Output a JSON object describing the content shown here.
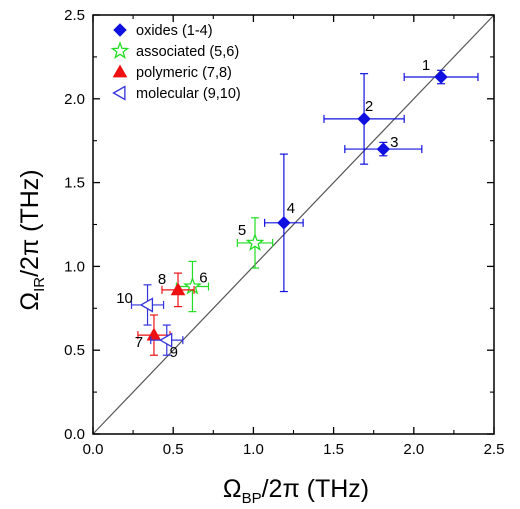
{
  "chart_data": {
    "type": "scatter",
    "xlabel": {
      "base": "Ω",
      "sub": "BP",
      "rest": "/2π (THz)"
    },
    "ylabel": {
      "base": "Ω",
      "sub": "IR",
      "rest": "/2π (THz)"
    },
    "xlim": [
      0.0,
      2.5
    ],
    "ylim": [
      0.0,
      2.5
    ],
    "x_ticks": [
      "0.0",
      "0.5",
      "1.0",
      "1.5",
      "2.0",
      "2.5"
    ],
    "y_ticks": [
      "0.0",
      "0.5",
      "1.0",
      "1.5",
      "2.0",
      "2.5"
    ],
    "grid": false,
    "legend_position": "top-left",
    "reference_line": {
      "x": [
        0.0,
        2.5
      ],
      "y": [
        0.0,
        2.5
      ]
    },
    "series": [
      {
        "name": "oxides (1-4)",
        "marker": "diamond",
        "color": "#1010e0",
        "filled": true,
        "points": [
          {
            "label": "1",
            "x": 2.17,
            "y": 2.13,
            "xerr": 0.23,
            "yerr": 0.04
          },
          {
            "label": "2",
            "x": 1.69,
            "y": 1.88,
            "xerr": 0.25,
            "yerr": 0.27
          },
          {
            "label": "3",
            "x": 1.81,
            "y": 1.7,
            "xerr": 0.24,
            "yerr": 0.04
          },
          {
            "label": "4",
            "x": 1.19,
            "y": 1.26,
            "xerr": 0.12,
            "yerr": 0.41
          }
        ]
      },
      {
        "name": "associated (5,6)",
        "marker": "star",
        "color": "#22dd22",
        "filled": false,
        "points": [
          {
            "label": "5",
            "x": 1.01,
            "y": 1.14,
            "xerr": 0.11,
            "yerr": 0.15
          },
          {
            "label": "6",
            "x": 0.62,
            "y": 0.88,
            "xerr": 0.1,
            "yerr": 0.15
          }
        ]
      },
      {
        "name": "polymeric (7,8)",
        "marker": "triangle-up",
        "color": "#ee1111",
        "filled": true,
        "points": [
          {
            "label": "7",
            "x": 0.38,
            "y": 0.59,
            "xerr": 0.1,
            "yerr": 0.12
          },
          {
            "label": "8",
            "x": 0.53,
            "y": 0.86,
            "xerr": 0.1,
            "yerr": 0.1
          }
        ]
      },
      {
        "name": "molecular (9,10)",
        "marker": "triangle-left",
        "color": "#3333dd",
        "filled": false,
        "points": [
          {
            "label": "9",
            "x": 0.46,
            "y": 0.56,
            "xerr": 0.1,
            "yerr": 0.09
          },
          {
            "label": "10",
            "x": 0.34,
            "y": 0.77,
            "xerr": 0.1,
            "yerr": 0.12
          }
        ]
      }
    ]
  }
}
